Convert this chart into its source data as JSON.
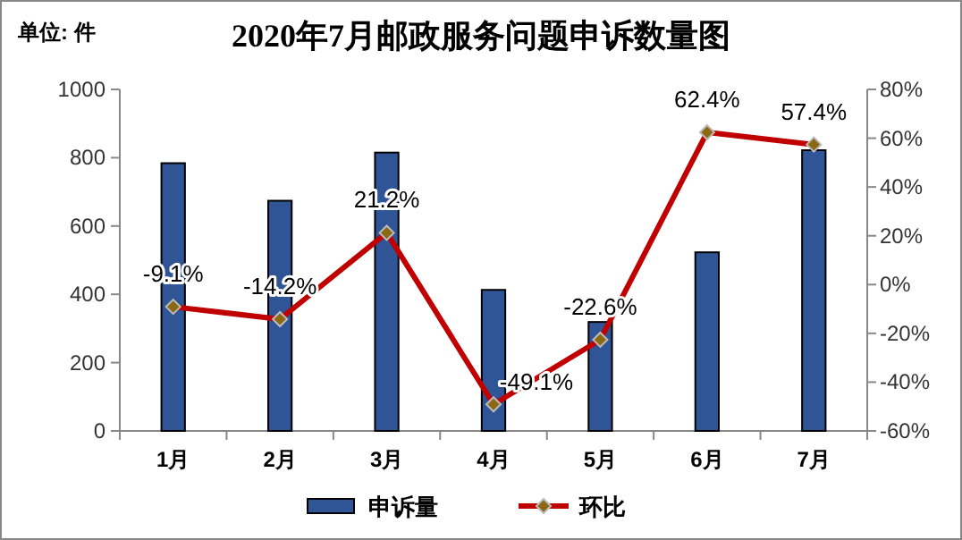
{
  "chart_data": {
    "type": "bar",
    "title": "2020年7月邮政服务问题申诉数量图",
    "annotations": [
      "单位: 件"
    ],
    "categories": [
      "1月",
      "2月",
      "3月",
      "4月",
      "5月",
      "6月",
      "7月"
    ],
    "series": [
      {
        "name": "申诉量",
        "color": "#2f5597",
        "values": [
          784,
          674,
          815,
          413,
          319,
          523,
          822
        ]
      },
      {
        "name": "环比",
        "type": "line",
        "axis": "y2",
        "color": "#c00000",
        "marker": "diamond",
        "values": [
          -9.1,
          -14.2,
          21.2,
          -49.1,
          -22.6,
          62.4,
          57.4
        ],
        "value_labels": [
          "-9.1%",
          "-14.2%",
          "21.2%",
          "-49.1%",
          "-22.6%",
          "62.4%",
          "57.4%"
        ]
      }
    ],
    "ylim": [
      0,
      1000
    ],
    "yticks": [
      0,
      200,
      400,
      600,
      800,
      1000
    ],
    "y2lim": [
      -60,
      80
    ],
    "y2ticks": [
      {
        "value": -60,
        "label": "-60%"
      },
      {
        "value": -40,
        "label": "-40%"
      },
      {
        "value": -20,
        "label": "-20%"
      },
      {
        "value": 0,
        "label": "0%"
      },
      {
        "value": 20,
        "label": "20%"
      },
      {
        "value": 40,
        "label": "40%"
      },
      {
        "value": 60,
        "label": "60%"
      },
      {
        "value": 80,
        "label": "80%"
      }
    ],
    "grid": false,
    "legend": "bottom"
  }
}
